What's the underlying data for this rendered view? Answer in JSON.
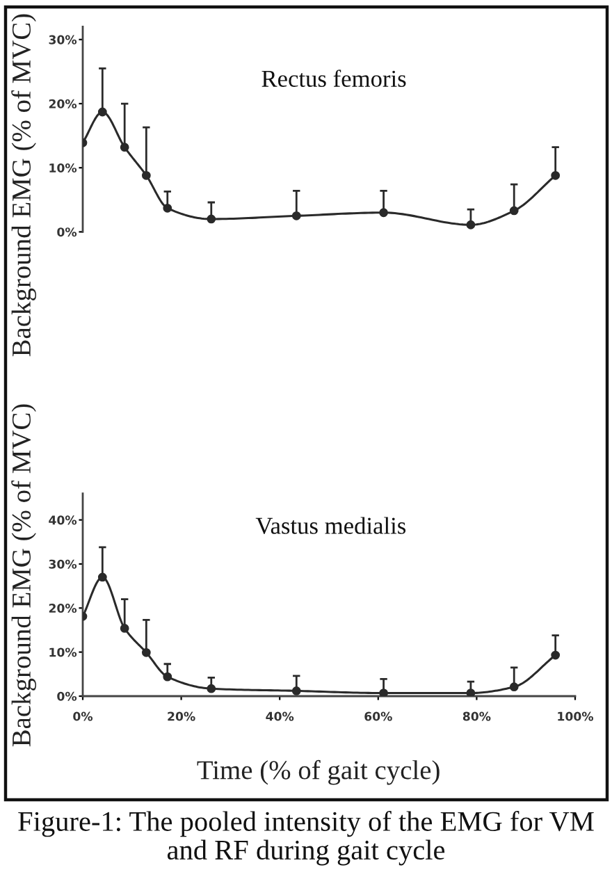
{
  "chart_data": [
    {
      "type": "line",
      "title": "Rectus femoris",
      "ylabel": "Background EMG (% of MVC)",
      "tick_labels": "y",
      "marker": "circle",
      "line_style": "solid",
      "grid": false,
      "x": [
        0,
        4.0,
        8.5,
        12.9,
        17.2,
        26.1,
        43.4,
        61.1,
        78.8,
        87.6,
        96.0
      ],
      "xlim": [
        0,
        100
      ],
      "ylim": [
        0,
        32
      ],
      "yticks": [
        {
          "value": 0,
          "label": "0%"
        },
        {
          "value": 10,
          "label": "10%"
        },
        {
          "value": 20,
          "label": "20%"
        },
        {
          "value": 30,
          "label": "30%"
        }
      ],
      "series": [
        {
          "color": "#2a2a2a",
          "values": [
            13.9,
            18.7,
            13.2,
            8.8,
            3.7,
            2.0,
            2.5,
            3.0,
            1.1,
            3.3,
            8.8
          ],
          "errors": [
            null,
            [
              18.7,
              25.5
            ],
            [
              13.2,
              20.0
            ],
            [
              8.8,
              16.3
            ],
            [
              3.7,
              6.3
            ],
            [
              2.0,
              4.6
            ],
            [
              2.5,
              6.4
            ],
            [
              3.0,
              6.4
            ],
            [
              1.1,
              3.5
            ],
            [
              3.3,
              7.4
            ],
            [
              8.8,
              13.2
            ]
          ]
        }
      ]
    },
    {
      "type": "line",
      "title": "Vastus medialis",
      "xlabel": "Time (% of gait cycle)",
      "ylabel": "Background EMG (% of MVC)",
      "marker": "circle",
      "line_style": "solid",
      "grid": false,
      "x": [
        0,
        4.0,
        8.5,
        12.9,
        17.2,
        26.1,
        43.4,
        61.1,
        78.8,
        87.6,
        96.0
      ],
      "xlim": [
        0,
        100
      ],
      "xticks": [
        {
          "value": 0,
          "label": "0%"
        },
        {
          "value": 20,
          "label": "20%"
        },
        {
          "value": 40,
          "label": "40%"
        },
        {
          "value": 60,
          "label": "60%"
        },
        {
          "value": 80,
          "label": "80%"
        },
        {
          "value": 100,
          "label": "100%"
        }
      ],
      "ylim": [
        0,
        46
      ],
      "yticks": [
        {
          "value": 0,
          "label": "0%"
        },
        {
          "value": 10,
          "label": "10%"
        },
        {
          "value": 20,
          "label": "20%"
        },
        {
          "value": 30,
          "label": "30%"
        },
        {
          "value": 40,
          "label": "40%"
        }
      ],
      "series": [
        {
          "color": "#2a2a2a",
          "values": [
            18.1,
            27.0,
            15.4,
            9.9,
            4.4,
            1.7,
            1.2,
            0.7,
            0.7,
            2.1,
            9.3
          ],
          "errors": [
            null,
            [
              27.0,
              33.8
            ],
            [
              15.4,
              22.0
            ],
            [
              9.9,
              17.3
            ],
            [
              4.4,
              7.3
            ],
            [
              1.7,
              4.2
            ],
            [
              1.2,
              4.6
            ],
            [
              0.7,
              3.9
            ],
            [
              0.7,
              3.3
            ],
            [
              2.1,
              6.5
            ],
            [
              9.3,
              13.8
            ]
          ]
        }
      ],
      "annotations": [
        "Figure-1: The pooled intensity of the EMG for VM and RF during gait cycle"
      ]
    }
  ]
}
